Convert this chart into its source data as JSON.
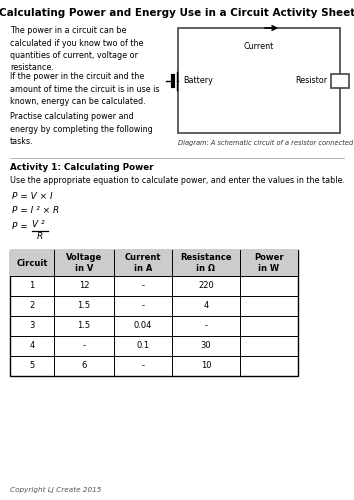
{
  "title": "Calculating Power and Energy Use in a Circuit Activity Sheet",
  "bg_color": "#ffffff",
  "intro_text_1": "The power in a circuit can be\ncalculated if you know two of the\nquantities of current, voltage or\nresistance.",
  "intro_text_2": "If the power in the circuit and the\namount of time the circuit is in use is\nknown, energy can be calculated.",
  "intro_text_3": "Practise calculating power and\nenergy by completing the following\ntasks.",
  "diagram_caption": "Diagram: A schematic circuit of a resistor connected to a battery",
  "activity_title": "Activity 1: Calculating Power",
  "activity_instruction": "Use the appropriate equation to calculate power, and enter the values in the table.",
  "eq1": "P = V × I",
  "eq2": "P = I ² × R",
  "eq3_num": "V ²",
  "eq3_denom": "R",
  "eq3_prefix": "P =",
  "table_headers": [
    "Circuit",
    "Voltage\nin V",
    "Current\nin A",
    "Resistance\nin Ω",
    "Power\nin W"
  ],
  "table_data": [
    [
      "1",
      "12",
      "-",
      "220",
      ""
    ],
    [
      "2",
      "1.5",
      "-",
      "4",
      ""
    ],
    [
      "3",
      "1.5",
      "0.04",
      "-",
      ""
    ],
    [
      "4",
      "-",
      "0.1",
      "30",
      ""
    ],
    [
      "5",
      "6",
      "-",
      "10",
      ""
    ]
  ],
  "copyright": "Copyright LJ Create 2015",
  "font_size_title": 7.5,
  "font_size_body": 5.8,
  "font_size_table": 6.0,
  "font_size_eq": 6.5,
  "font_size_caption": 4.8,
  "font_size_copyright": 5.2
}
